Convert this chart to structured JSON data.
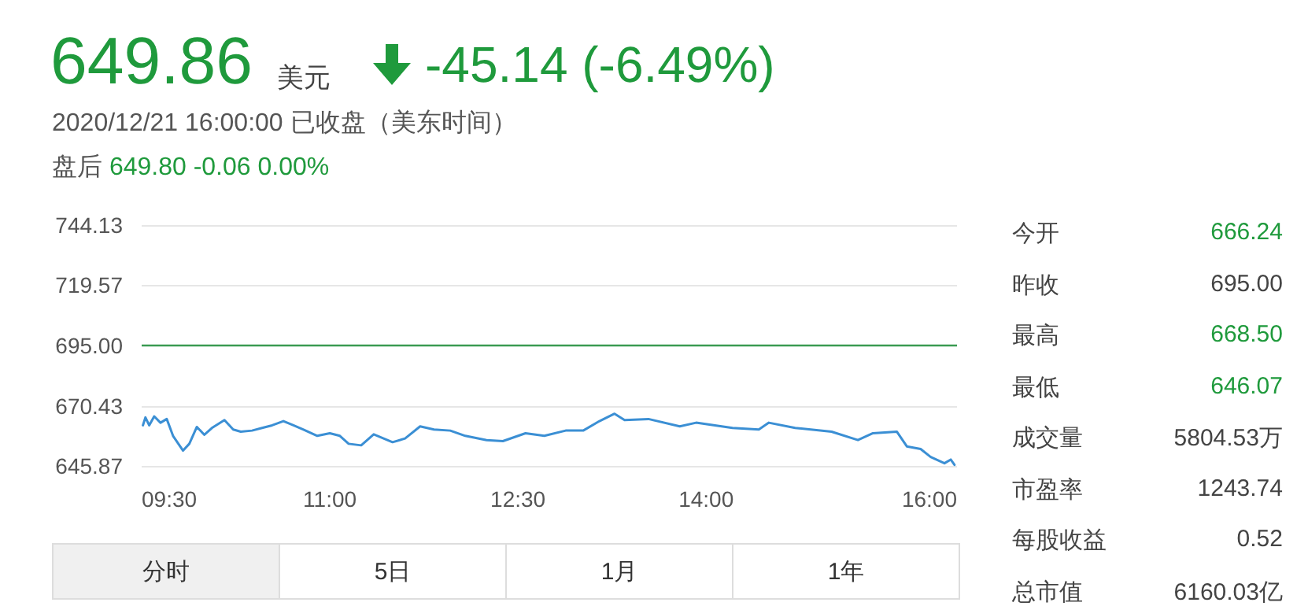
{
  "chart_data": {
    "type": "line",
    "title": "649.86",
    "subtitle": "2020/12/21 16:00:00 已收盘（美东时间）",
    "annotations": [
      "美元",
      "-45.14 (-6.49%)",
      "盘后 649.80 -0.06 0.00%",
      "今开",
      "666.24",
      "昨收",
      "695.00",
      "最高",
      "668.50",
      "最低",
      "646.07",
      "成交量",
      "5804.53万",
      "市盈率",
      "1243.74",
      "每股收益",
      "0.52",
      "总市值",
      "6160.03亿",
      "分时",
      "5日",
      "1月",
      "1年"
    ],
    "xlim": [
      9.5,
      16
    ],
    "xticks": [
      {
        "value": 9.5,
        "label": "09:30"
      },
      {
        "value": 11,
        "label": "11:00"
      },
      {
        "value": 12.5,
        "label": "12:30"
      },
      {
        "value": 14,
        "label": "14:00"
      },
      {
        "value": 16,
        "label": "16:00"
      }
    ],
    "ylim": [
      645.87,
      744.13
    ],
    "yticks": [
      645.87,
      670.43,
      {
        "value": 695,
        "label": "695.00"
      },
      719.57,
      744.13
    ],
    "grid": "y",
    "marker": "none",
    "line_style": "solid",
    "ref_lines": [
      {
        "axis": "y",
        "value": 695,
        "color": "#3a9a52"
      }
    ],
    "series": [
      {
        "color": "#3b8fd4",
        "x": [
          9.51,
          9.53,
          9.56,
          9.6,
          9.65,
          9.7,
          9.75,
          9.83,
          9.88,
          9.94,
          10.0,
          10.06,
          10.16,
          10.23,
          10.29,
          10.38,
          10.46,
          10.54,
          10.63,
          10.71,
          10.79,
          10.9,
          11.0,
          11.08,
          11.15,
          11.25,
          11.35,
          11.5,
          11.6,
          11.72,
          11.83,
          11.96,
          12.08,
          12.25,
          12.38,
          12.56,
          12.71,
          12.88,
          13.02,
          13.15,
          13.27,
          13.35,
          13.54,
          13.79,
          13.92,
          14.21,
          14.42,
          14.5,
          14.71,
          15.0,
          15.21,
          15.33,
          15.52,
          15.6,
          15.71,
          15.79,
          15.9,
          15.95,
          15.98
        ],
        "values": [
          662.43,
          665.65,
          662.43,
          666.08,
          663.5,
          665.01,
          658.13,
          652.11,
          654.9,
          661.78,
          658.56,
          661.35,
          664.58,
          660.71,
          659.85,
          660.28,
          661.35,
          662.43,
          664.15,
          662.43,
          660.71,
          658.13,
          659.2,
          658.13,
          654.9,
          654.26,
          658.77,
          655.55,
          657.05,
          662.0,
          660.71,
          660.28,
          658.13,
          656.41,
          655.98,
          659.2,
          658.13,
          660.28,
          660.28,
          664.15,
          667.16,
          664.58,
          665.01,
          662.0,
          663.5,
          661.35,
          660.71,
          663.5,
          661.35,
          659.85,
          656.41,
          659.2,
          659.85,
          653.83,
          652.76,
          649.53,
          646.95,
          648.46,
          646.3
        ]
      }
    ]
  }
}
